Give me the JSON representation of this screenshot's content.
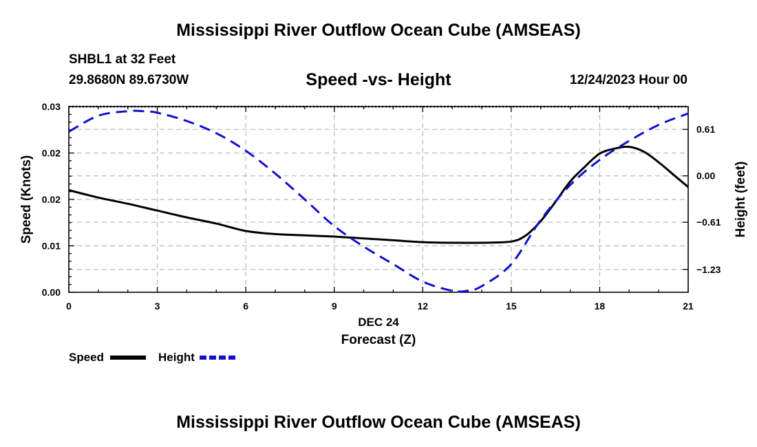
{
  "header": {
    "title": "Mississippi River Outflow Ocean Cube (AMSEAS)",
    "station": "SHBL1 at 32 Feet",
    "coords": "29.8680N  89.6730W",
    "chart_title": "Speed -vs- Height",
    "datetime": "12/24/2023 Hour 00"
  },
  "footer": {
    "title": "Mississippi River Outflow Ocean Cube (AMSEAS)"
  },
  "chart_data": {
    "type": "line",
    "title": "Speed -vs- Height",
    "xlabel": "Forecast (Z)",
    "xlabel_date": "DEC 24",
    "ylabel": "Speed (Knots)",
    "y2label": "Height (feet)",
    "grid": true,
    "legend_placement": "bottom-left",
    "xlim": [
      0,
      21
    ],
    "ylim": [
      0,
      0.03
    ],
    "y2lim": [
      -1.53,
      0.91
    ],
    "x_ticks": [
      0,
      3,
      6,
      9,
      12,
      15,
      18,
      21
    ],
    "x_tick_labels": [
      "0",
      "3",
      "6",
      "9",
      "12",
      "15",
      "18",
      "21"
    ],
    "y_ticks": [
      0,
      0.0075,
      0.015,
      0.0225,
      0.03
    ],
    "y_tick_labels": [
      "0.00",
      "0.01",
      "0.02",
      "0.02",
      "0.03"
    ],
    "y2_ticks": [
      0.61,
      0.0,
      -0.61,
      -1.23
    ],
    "y2_tick_labels": [
      "0.61",
      "0.00",
      "−0.61",
      "−1.23"
    ],
    "series": [
      {
        "name": "Speed",
        "axis": "left",
        "color": "#000000",
        "dash": "solid",
        "x": [
          0,
          1,
          2,
          3,
          4,
          5,
          6,
          7,
          8,
          9,
          10,
          11,
          12,
          13,
          14,
          15,
          15.5,
          16,
          16.5,
          17,
          17.5,
          18,
          18.5,
          19,
          19.5,
          20,
          20.5,
          21
        ],
        "values": [
          0.0165,
          0.0153,
          0.0143,
          0.0132,
          0.0121,
          0.0111,
          0.0099,
          0.0094,
          0.0092,
          0.009,
          0.0087,
          0.0084,
          0.0081,
          0.008,
          0.008,
          0.0082,
          0.0092,
          0.0115,
          0.0146,
          0.0179,
          0.0203,
          0.0224,
          0.0232,
          0.0235,
          0.0227,
          0.021,
          0.019,
          0.017
        ]
      },
      {
        "name": "Height",
        "axis": "right",
        "color": "#1010cc",
        "dash": "dashed",
        "x": [
          0,
          1,
          2,
          2.5,
          3,
          4,
          5,
          6,
          7,
          8,
          9,
          10,
          11,
          12,
          13,
          13.5,
          14,
          15,
          16,
          17,
          18,
          19,
          20,
          21
        ],
        "values": [
          0.58,
          0.79,
          0.85,
          0.85,
          0.83,
          0.72,
          0.56,
          0.33,
          0.03,
          -0.31,
          -0.66,
          -0.93,
          -1.16,
          -1.39,
          -1.51,
          -1.51,
          -1.45,
          -1.16,
          -0.58,
          -0.12,
          0.21,
          0.46,
          0.67,
          0.82
        ]
      }
    ]
  }
}
